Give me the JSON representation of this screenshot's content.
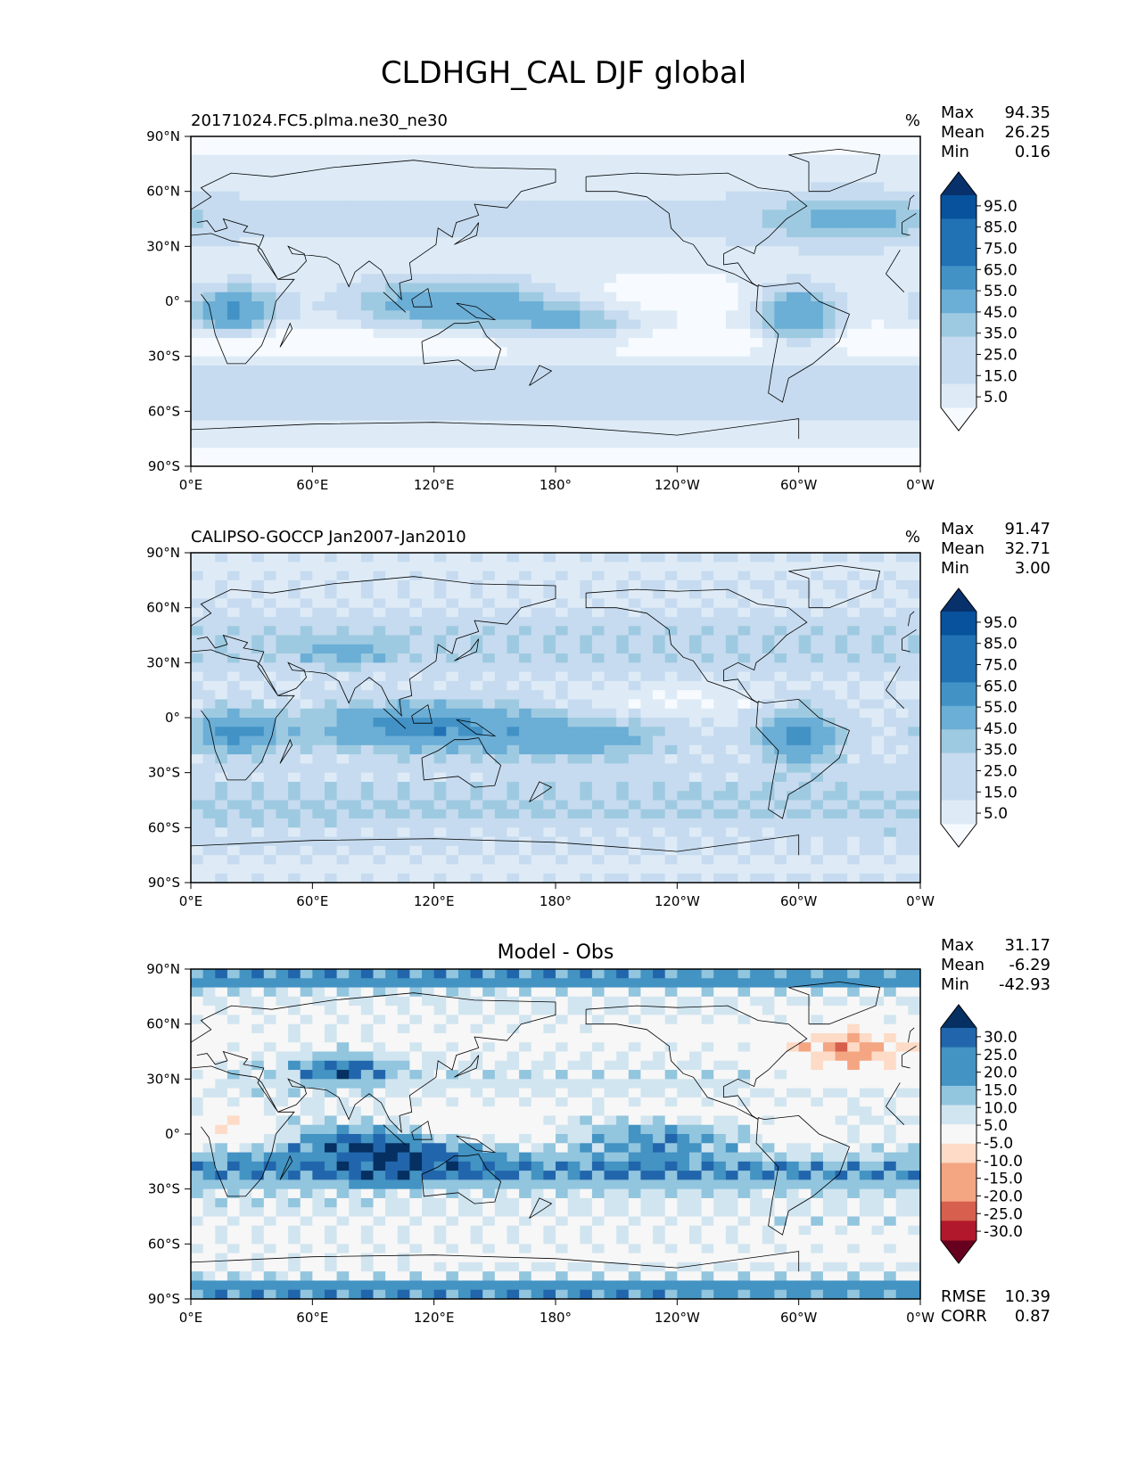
{
  "figure": {
    "title": "CLDHGH_CAL DJF global"
  },
  "axes": {
    "lat_ticks": [
      "90°N",
      "60°N",
      "30°N",
      "0°",
      "30°S",
      "60°S",
      "90°S"
    ],
    "lon_ticks": [
      "0°E",
      "60°E",
      "120°E",
      "180°",
      "120°W",
      "60°W",
      "0°W"
    ]
  },
  "colors": {
    "blues": [
      "#f7fbff",
      "#deebf7",
      "#c6dbef",
      "#9ecae1",
      "#6baed6",
      "#4292c6",
      "#2171b5",
      "#08519c",
      "#08306b"
    ],
    "rdbu": [
      "#67001f",
      "#b2182b",
      "#d6604d",
      "#f4a582",
      "#fddbc7",
      "#f7f7f7",
      "#d1e5f0",
      "#92c5de",
      "#4393c3",
      "#2166ac",
      "#053061"
    ],
    "coast": "#000000"
  },
  "chart_data": [
    {
      "type": "heatmap",
      "title": "",
      "subtitle_left": "20171024.FC5.plma.ne30_ne30",
      "units": "%",
      "stats": [
        {
          "label": "Max",
          "value": "94.35"
        },
        {
          "label": "Mean",
          "value": "26.25"
        },
        {
          "label": "Min",
          "value": "0.16"
        }
      ],
      "colorbar": {
        "colormap": "Blues",
        "levels": [
          0,
          5,
          15,
          25,
          35,
          45,
          55,
          65,
          75,
          85,
          95,
          100
        ],
        "tick_labels": [
          "95.0",
          "85.0",
          "75.0",
          "65.0",
          "55.0",
          "45.0",
          "35.0",
          "25.0",
          "15.0",
          "5.0"
        ],
        "extend": "both"
      },
      "xlim": [
        0,
        360
      ],
      "ylim": [
        -90,
        90
      ]
    },
    {
      "type": "heatmap",
      "title": "",
      "subtitle_left": "CALIPSO-GOCCP Jan2007-Jan2010",
      "units": "%",
      "stats": [
        {
          "label": "Max",
          "value": "91.47"
        },
        {
          "label": "Mean",
          "value": "32.71"
        },
        {
          "label": "Min",
          "value": "3.00"
        }
      ],
      "colorbar": {
        "colormap": "Blues",
        "levels": [
          0,
          5,
          15,
          25,
          35,
          45,
          55,
          65,
          75,
          85,
          95,
          100
        ],
        "tick_labels": [
          "95.0",
          "85.0",
          "75.0",
          "65.0",
          "55.0",
          "45.0",
          "35.0",
          "25.0",
          "15.0",
          "5.0"
        ],
        "extend": "both"
      },
      "xlim": [
        0,
        360
      ],
      "ylim": [
        -90,
        90
      ]
    },
    {
      "type": "heatmap",
      "title": "Model - Obs",
      "subtitle_left": "",
      "units": "",
      "stats": [
        {
          "label": "Max",
          "value": "31.17"
        },
        {
          "label": "Mean",
          "value": "-6.29"
        },
        {
          "label": "Min",
          "value": "-42.93"
        }
      ],
      "bottom_stats": [
        {
          "label": "RMSE",
          "value": "10.39"
        },
        {
          "label": "CORR",
          "value": "0.87"
        }
      ],
      "colorbar": {
        "colormap": "RdBu",
        "levels": [
          -30,
          -25,
          -20,
          -15,
          -10,
          -5,
          5,
          10,
          15,
          20,
          25,
          30
        ],
        "tick_labels": [
          "30.0",
          "25.0",
          "20.0",
          "15.0",
          "10.0",
          "5.0",
          "-5.0",
          "-10.0",
          "-15.0",
          "-20.0",
          "-25.0",
          "-30.0"
        ],
        "extend": "both"
      },
      "xlim": [
        0,
        360
      ],
      "ylim": [
        -90,
        90
      ]
    }
  ]
}
